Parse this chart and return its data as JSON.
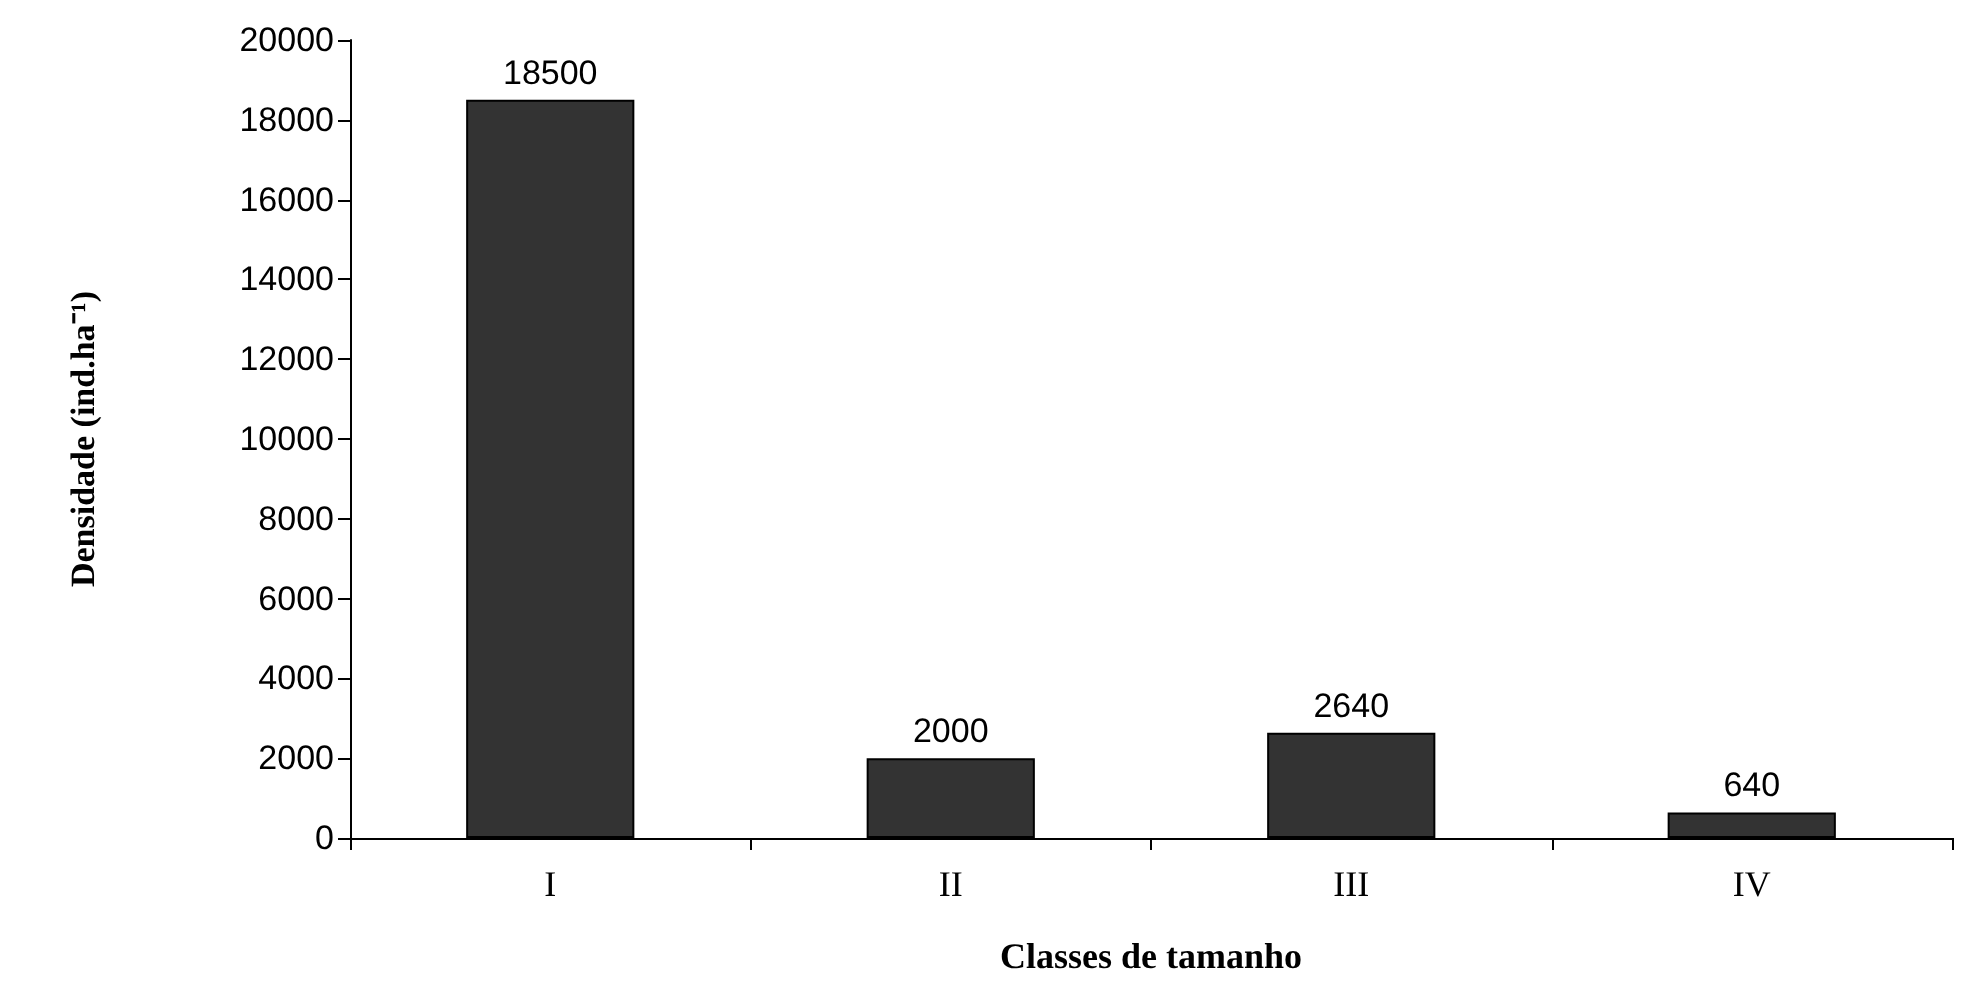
{
  "chart_data": {
    "type": "bar",
    "xlabel": "Classes de tamanho",
    "ylabel": "Densidade (ind.ha⁻¹)",
    "categories": [
      "I",
      "II",
      "III",
      "IV"
    ],
    "values": [
      18500,
      2000,
      2640,
      640
    ],
    "color": "#333333",
    "ylim": [
      0,
      20000
    ],
    "yticks": [
      0,
      2000,
      4000,
      6000,
      8000,
      10000,
      12000,
      14000,
      16000,
      18000,
      20000
    ],
    "data_labels": true,
    "grid": false
  }
}
